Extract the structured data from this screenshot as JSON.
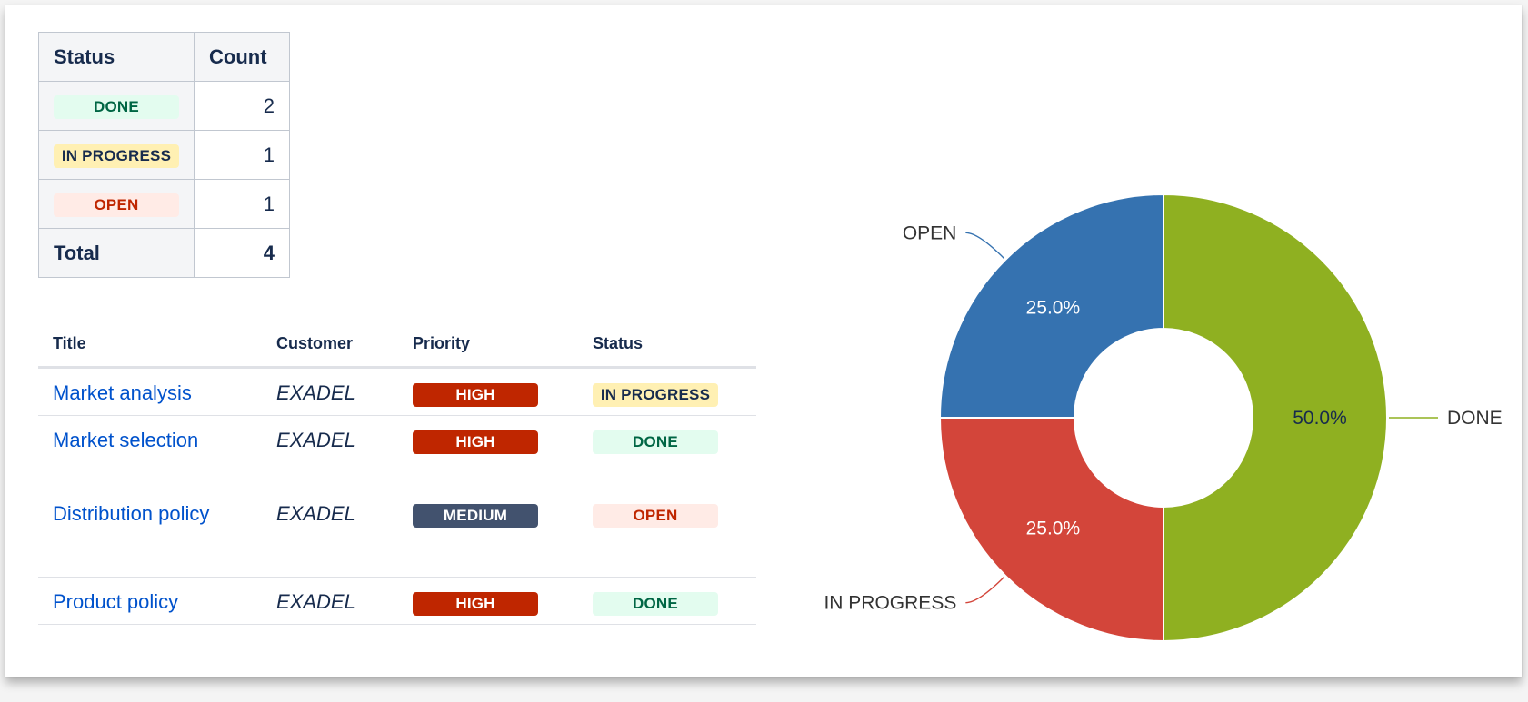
{
  "summary": {
    "headers": {
      "status": "Status",
      "count": "Count"
    },
    "rows": [
      {
        "status": "DONE",
        "count": "2"
      },
      {
        "status": "IN PROGRESS",
        "count": "1"
      },
      {
        "status": "OPEN",
        "count": "1"
      }
    ],
    "total": {
      "label": "Total",
      "count": "4"
    }
  },
  "issues": {
    "headers": {
      "title": "Title",
      "customer": "Customer",
      "priority": "Priority",
      "status": "Status"
    },
    "rows": [
      {
        "title": "Market analysis",
        "customer": "EXADEL",
        "priority": "HIGH",
        "status": "IN PROGRESS"
      },
      {
        "title": "Market selection",
        "customer": "EXADEL",
        "priority": "HIGH",
        "status": "DONE"
      },
      {
        "title": "Distribution policy",
        "customer": "EXADEL",
        "priority": "MEDIUM",
        "status": "OPEN"
      },
      {
        "title": "Product policy",
        "customer": "EXADEL",
        "priority": "HIGH",
        "status": "DONE"
      }
    ]
  },
  "colors": {
    "done": "#8fb021",
    "in_progress": "#d3453a",
    "open": "#3572b0",
    "high": "#bf2600",
    "medium": "#42526e"
  },
  "chart_data": {
    "type": "pie",
    "variant": "donut",
    "title": "",
    "categories": [
      "DONE",
      "IN PROGRESS",
      "OPEN"
    ],
    "values": [
      2,
      1,
      1
    ],
    "percent_labels": [
      "50.0%",
      "25.0%",
      "25.0%"
    ],
    "colors": [
      "#8fb021",
      "#d3453a",
      "#3572b0"
    ],
    "legend": "none"
  }
}
